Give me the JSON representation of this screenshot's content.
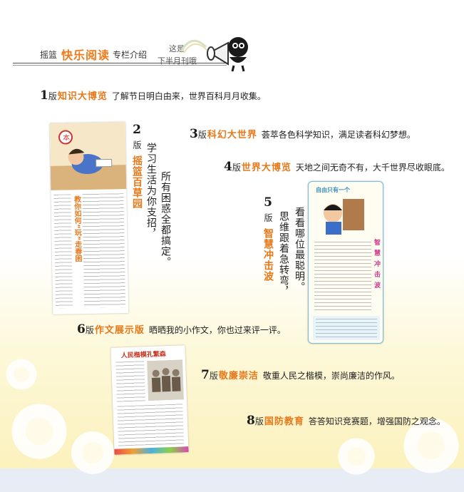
{
  "header": {
    "label": "摇篮",
    "title": "快乐阅读",
    "suffix": "专栏介绍",
    "sub_line1": "这是",
    "sub_line2": "下半月刊哦"
  },
  "features": [
    {
      "num": "1",
      "ban": "版",
      "name": "知识大博览",
      "desc": "了解节日明白由来，世界百科月月收集。"
    },
    {
      "num": "2",
      "ban": "版",
      "name": "摇篮百草园",
      "desc_line1": "学习生活为你支招，",
      "desc_line2": "所有困惑全都搞定。"
    },
    {
      "num": "3",
      "ban": "版",
      "name": "科幻大世界",
      "desc": "荟萃各色科学知识，满足读者科幻梦想。"
    },
    {
      "num": "4",
      "ban": "版",
      "name": "世界大博览",
      "desc": "天地之间无奇不有，大千世界尽收眼底。"
    },
    {
      "num": "5",
      "ban": "版",
      "name": "智慧冲击波",
      "desc_line1": "看看哪位最聪明。",
      "desc_line2": "思维跟着急转弯，"
    },
    {
      "num": "6",
      "ban": "版",
      "name": "作文展示版",
      "desc": "晒晒我的小作文，你也过来评一评。"
    },
    {
      "num": "7",
      "ban": "版",
      "name": "敬廉崇洁",
      "desc": "敬重人民之楷模，崇尚廉洁的作风。"
    },
    {
      "num": "8",
      "ban": "版",
      "name": "国防教育",
      "desc": "答答知识竞赛题，增强国防之观念。"
    }
  ],
  "thumbs": {
    "t2_heading": "教你如何“玩”走春困",
    "t5_title": "自由只有一个",
    "t5_side": "智慧冲击波",
    "t7_title": "人民楷模孔繁森"
  },
  "colors": {
    "accent": "#e8781a",
    "footer": "#e8ecf5"
  }
}
